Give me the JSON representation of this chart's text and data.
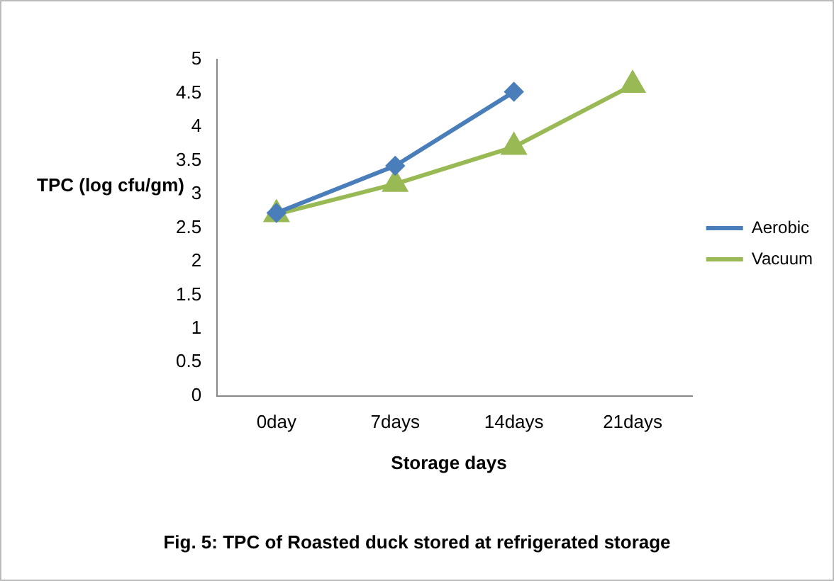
{
  "chart_data": {
    "type": "line",
    "xlabel": "Storage days",
    "ylabel": "TPC (log cfu/gm)",
    "categories": [
      "0day",
      "7days",
      "14days",
      "21days"
    ],
    "series": [
      {
        "name": "Aerobic",
        "color": "#4a7ebb",
        "values": [
          2.72,
          3.42,
          4.52,
          null
        ],
        "marker": "diamond"
      },
      {
        "name": "Vacuum",
        "color": "#98b954",
        "values": [
          2.7,
          3.15,
          3.7,
          4.62
        ],
        "marker": "triangle"
      }
    ],
    "ylim": [
      0,
      5
    ],
    "yticks": [
      0,
      0.5,
      1,
      1.5,
      2,
      2.5,
      3,
      3.5,
      4,
      4.5,
      5
    ],
    "grid": false,
    "legend": "right",
    "annotations": [
      "Fig. 5: TPC of Roasted duck stored at  refrigerated storage"
    ]
  }
}
